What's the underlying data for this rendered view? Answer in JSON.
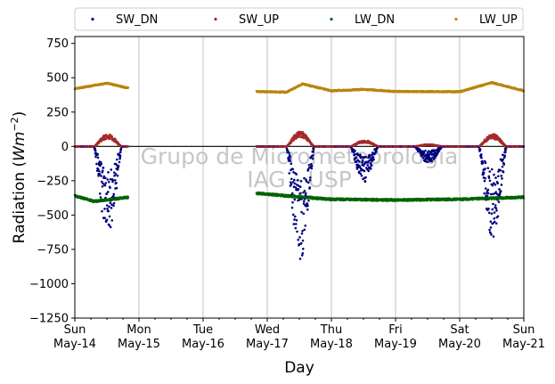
{
  "chart_data": {
    "type": "scatter",
    "xlabel": "Day",
    "ylabel_main": "Radiation (",
    "ylabel_unit": "Wm",
    "ylabel_exp": "−2",
    "ylabel_close": ")",
    "ylim": [
      -1250,
      800
    ],
    "yticks": [
      750,
      500,
      250,
      0,
      -250,
      -500,
      -750,
      -1000,
      -1250
    ],
    "ytick_labels": [
      "750",
      "500",
      "250",
      "0",
      "−250",
      "−500",
      "−750",
      "−1000",
      "−1250"
    ],
    "xlim_days": [
      0,
      7
    ],
    "xticks": [
      {
        "day": 0,
        "weekday": "Sun",
        "date": "May-14"
      },
      {
        "day": 1,
        "weekday": "Mon",
        "date": "May-15"
      },
      {
        "day": 2,
        "weekday": "Tue",
        "date": "May-16"
      },
      {
        "day": 3,
        "weekday": "Wed",
        "date": "May-17"
      },
      {
        "day": 4,
        "weekday": "Thu",
        "date": "May-18"
      },
      {
        "day": 5,
        "weekday": "Fri",
        "date": "May-19"
      },
      {
        "day": 6,
        "weekday": "Sat",
        "date": "May-20"
      },
      {
        "day": 7,
        "weekday": "Sun",
        "date": "May-21"
      }
    ],
    "grid": "x-only",
    "legend_position": "top",
    "watermark": [
      "Grupo de Micrometeorologia",
      "IAG - USP"
    ],
    "data_segments": [
      [
        0,
        0.83
      ],
      [
        2.83,
        7.0
      ]
    ],
    "series": [
      {
        "name": "SW_DN",
        "color": "#00007f"
      },
      {
        "name": "SW_UP",
        "color": "#a52a2a"
      },
      {
        "name": "LW_DN",
        "color": "#006400"
      },
      {
        "name": "LW_UP",
        "color": "#b8860b"
      }
    ],
    "sw_up_daily_peak": [
      [
        0.5,
        90
      ],
      [
        3.55,
        110
      ],
      [
        4.45,
        45
      ],
      [
        5.5,
        15
      ],
      [
        6.5,
        90
      ]
    ],
    "sw_dn_daily_min": [
      [
        0.5,
        -650
      ],
      [
        3.55,
        -830
      ],
      [
        4.45,
        -260
      ],
      [
        5.5,
        -120
      ],
      [
        6.5,
        -660
      ]
    ],
    "lw_up_base": [
      [
        0.0,
        420
      ],
      [
        0.5,
        460
      ],
      [
        0.83,
        425
      ],
      [
        2.83,
        400
      ],
      [
        3.3,
        395
      ],
      [
        3.55,
        455
      ],
      [
        4.0,
        405
      ],
      [
        4.5,
        415
      ],
      [
        5.0,
        400
      ],
      [
        6.0,
        398
      ],
      [
        6.5,
        465
      ],
      [
        7.0,
        405
      ]
    ],
    "lw_dn_base": [
      [
        0.0,
        -360
      ],
      [
        0.3,
        -400
      ],
      [
        0.83,
        -370
      ],
      [
        2.83,
        -340
      ],
      [
        3.3,
        -360
      ],
      [
        4.0,
        -385
      ],
      [
        5.0,
        -390
      ],
      [
        6.0,
        -385
      ],
      [
        7.0,
        -370
      ]
    ]
  }
}
